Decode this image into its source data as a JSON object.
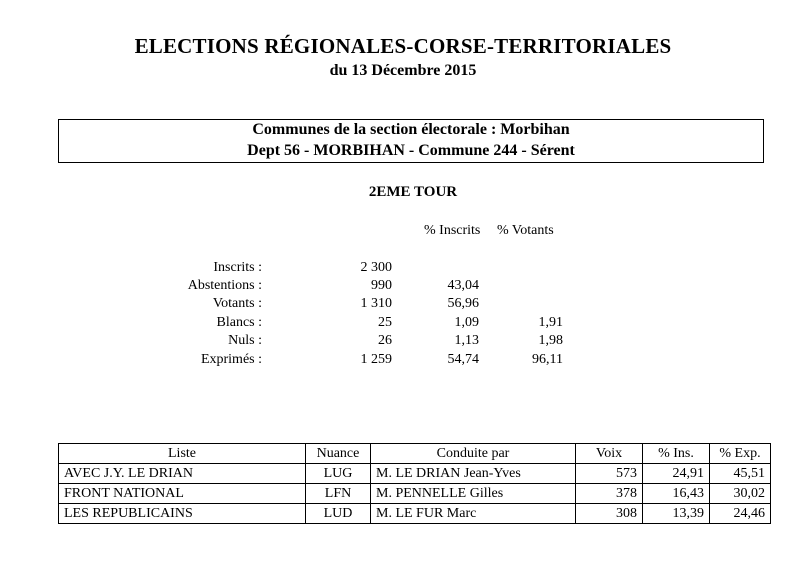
{
  "header": {
    "title": "ELECTIONS RÉGIONALES-CORSE-TERRITORIALES",
    "date": "du 13 Décembre 2015"
  },
  "section_box": {
    "line1": "Communes de la section électorale : Morbihan",
    "line2": "Dept 56 - MORBIHAN - Commune 244 - Sérent"
  },
  "round": "2EME TOUR",
  "stats_headers": {
    "pct_inscrits": "% Inscrits",
    "pct_votants": "% Votants"
  },
  "stats": [
    {
      "label": "Inscrits :",
      "value": "2 300",
      "pct_inscrits": "",
      "pct_votants": ""
    },
    {
      "label": "Abstentions :",
      "value": "990",
      "pct_inscrits": "43,04",
      "pct_votants": ""
    },
    {
      "label": "Votants :",
      "value": "1 310",
      "pct_inscrits": "56,96",
      "pct_votants": ""
    },
    {
      "label": "Blancs :",
      "value": "25",
      "pct_inscrits": "1,09",
      "pct_votants": "1,91"
    },
    {
      "label": "Nuls :",
      "value": "26",
      "pct_inscrits": "1,13",
      "pct_votants": "1,98"
    },
    {
      "label": "Exprimés :",
      "value": "1 259",
      "pct_inscrits": "54,74",
      "pct_votants": "96,11"
    }
  ],
  "results_table": {
    "headers": {
      "liste": "Liste",
      "nuance": "Nuance",
      "conduite": "Conduite par",
      "voix": "Voix",
      "pct_ins": "% Ins.",
      "pct_exp": "% Exp."
    },
    "rows": [
      {
        "liste": "AVEC J.Y. LE DRIAN",
        "nuance": "LUG",
        "conduite": "M. LE DRIAN Jean-Yves",
        "voix": "573",
        "pct_ins": "24,91",
        "pct_exp": "45,51"
      },
      {
        "liste": "FRONT NATIONAL",
        "nuance": "LFN",
        "conduite": "M. PENNELLE Gilles",
        "voix": "378",
        "pct_ins": "16,43",
        "pct_exp": "30,02"
      },
      {
        "liste": "LES REPUBLICAINS",
        "nuance": "LUD",
        "conduite": "M. LE FUR Marc",
        "voix": "308",
        "pct_ins": "13,39",
        "pct_exp": "24,46"
      }
    ]
  }
}
